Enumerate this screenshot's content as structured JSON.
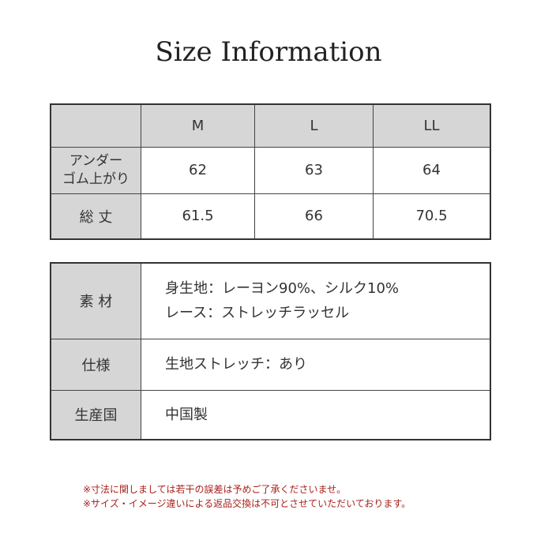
{
  "title": "Size Information",
  "size_table": {
    "headers": [
      "",
      "M",
      "L",
      "LL"
    ],
    "rows": [
      {
        "label_lines": [
          "アンダー",
          "ゴム上がり"
        ],
        "values": [
          "62",
          "63",
          "64"
        ]
      },
      {
        "label": "総 丈",
        "values": [
          "61.5",
          "66",
          "70.5"
        ]
      }
    ]
  },
  "spec_table": {
    "rows": [
      {
        "label": "素 材",
        "lines": [
          "身生地：レーヨン90%、シルク10%",
          "レース：ストレッチラッセル"
        ]
      },
      {
        "label": "仕様",
        "lines": [
          "生地ストレッチ：あり"
        ]
      },
      {
        "label": "生産国",
        "lines": [
          "中国製"
        ]
      }
    ]
  },
  "notes": [
    "※寸法に関しましては若干の誤差は予めご了承くださいませ。",
    "※サイズ・イメージ違いによる返品交換は不可とさせていただいております。"
  ],
  "colors": {
    "header_bg": "#d6d6d6",
    "note_text": "#a8201a"
  }
}
